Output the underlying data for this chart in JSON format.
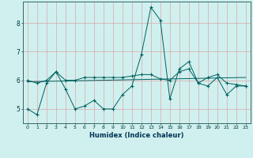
{
  "xlabel": "Humidex (Indice chaleur)",
  "background_color": "#cff0ee",
  "grid_color_v": "#dba8a8",
  "grid_color_h": "#dba8a8",
  "line_color": "#006060",
  "xlim": [
    -0.5,
    23.5
  ],
  "ylim": [
    4.5,
    8.75
  ],
  "yticks": [
    5,
    6,
    7,
    8
  ],
  "xticks": [
    0,
    1,
    2,
    3,
    4,
    5,
    6,
    7,
    8,
    9,
    10,
    11,
    12,
    13,
    14,
    15,
    16,
    17,
    18,
    19,
    20,
    21,
    22,
    23
  ],
  "line1_x": [
    0,
    1,
    2,
    3,
    4,
    5,
    6,
    7,
    8,
    9,
    10,
    11,
    12,
    13,
    14,
    15,
    16,
    17,
    18,
    19,
    20,
    21,
    22,
    23
  ],
  "line1_y": [
    5.0,
    4.8,
    5.9,
    6.3,
    5.7,
    5.0,
    5.1,
    5.3,
    5.0,
    5.0,
    5.5,
    5.8,
    6.9,
    8.55,
    8.1,
    5.35,
    6.4,
    6.65,
    5.9,
    5.8,
    6.1,
    5.5,
    5.8,
    5.8
  ],
  "line2_x": [
    0,
    1,
    2,
    3,
    4,
    5,
    6,
    7,
    8,
    9,
    10,
    11,
    12,
    13,
    14,
    15,
    16,
    17,
    18,
    19,
    20,
    21,
    22,
    23
  ],
  "line2_y": [
    6.0,
    5.9,
    6.0,
    6.3,
    6.0,
    6.0,
    6.1,
    6.1,
    6.1,
    6.1,
    6.1,
    6.15,
    6.2,
    6.2,
    6.05,
    6.0,
    6.3,
    6.4,
    5.9,
    6.1,
    6.2,
    5.9,
    5.85,
    5.8
  ],
  "trend_x": [
    0,
    23
  ],
  "trend_y": [
    5.95,
    6.1
  ]
}
